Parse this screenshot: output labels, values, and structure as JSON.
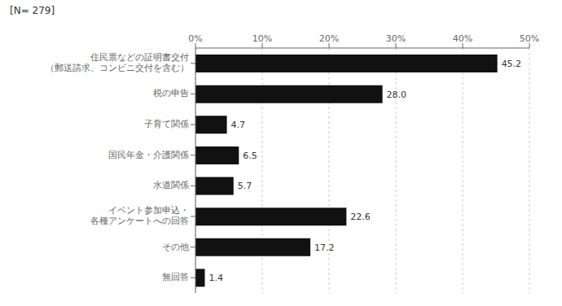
{
  "chart_data": {
    "type": "bar",
    "orientation": "horizontal",
    "title": "[N= 279]",
    "categories": [
      "住民票などの証明書交付\n（郵送請求、コンビニ交付を含む）",
      "税の申告",
      "子育て関係",
      "国民年金・介護関係",
      "水道関係",
      "イベント参加申込・\n各種アンケートへの回答",
      "その他",
      "無回答"
    ],
    "values": [
      45.2,
      28.0,
      4.7,
      6.5,
      5.7,
      22.6,
      17.2,
      1.4
    ],
    "value_labels": [
      "45.2",
      "28.0",
      "4.7",
      "6.5",
      "5.7",
      "22.6",
      "17.2",
      "1.4"
    ],
    "data_labels": true,
    "color": "#111111",
    "xlim": [
      0,
      50
    ],
    "xticks": [
      {
        "value": 0,
        "label": "0%"
      },
      {
        "value": 10,
        "label": "10%"
      },
      {
        "value": 20,
        "label": "20%"
      },
      {
        "value": 30,
        "label": "30%"
      },
      {
        "value": 40,
        "label": "40%"
      },
      {
        "value": 50,
        "label": "50%"
      }
    ],
    "grid": true
  }
}
